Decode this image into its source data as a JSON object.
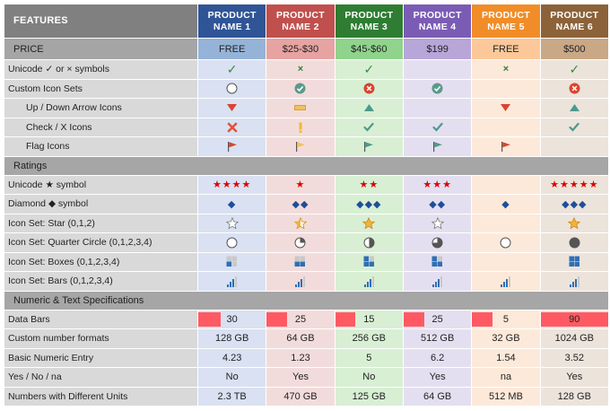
{
  "header": {
    "features": "FEATURES",
    "products": [
      {
        "line1": "PRODUCT",
        "line2": "NAME 1",
        "color": "#2f5597"
      },
      {
        "line1": "PRODUCT",
        "line2": "NAME 2",
        "color": "#c0504d"
      },
      {
        "line1": "PRODUCT",
        "line2": "NAME 3",
        "color": "#2e7d32"
      },
      {
        "line1": "PRODUCT",
        "line2": "NAME 4",
        "color": "#7b5cb5"
      },
      {
        "line1": "PRODUCT",
        "line2": "NAME 5",
        "color": "#f08d28"
      },
      {
        "line1": "PRODUCT",
        "line2": "NAME 6",
        "color": "#8c6239"
      }
    ]
  },
  "price": {
    "label": "PRICE",
    "values": [
      "FREE",
      "$25-$30",
      "$45-$60",
      "$199",
      "FREE",
      "$500"
    ]
  },
  "sections": {
    "ratings": "Ratings",
    "numeric": "Numeric & Text Specifications"
  },
  "labels": {
    "unicode_symbols": "Unicode ✓ or × symbols",
    "custom_icon_sets": "Custom Icon Sets",
    "updown": "Up / Down Arrow Icons",
    "checkx": "Check / X Icons",
    "flags": "Flag Icons",
    "unicode_star": "Unicode ★ symbol",
    "diamond": "Diamond ◆ symbol",
    "iconset_star": "Icon Set: Star (0,1,2)",
    "iconset_quarter": "Icon Set: Quarter Circle (0,1,2,3,4)",
    "iconset_boxes": "Icon Set: Boxes (0,1,2,3,4)",
    "iconset_bars": "Icon Set: Bars (0,1,2,3,4)",
    "data_bars": "Data Bars",
    "custom_number": "Custom number formats",
    "basic_numeric": "Basic Numeric Entry",
    "yes_no": "Yes / No / na",
    "units": "Numbers with Different Units"
  },
  "symbols": {
    "check": "✓",
    "cross": "×",
    "star": "★",
    "diamond": "◆"
  },
  "rows": {
    "unicode_symbols": [
      "check",
      "cross",
      "check",
      "",
      "cross",
      "check"
    ],
    "custom_icon_sets": [
      "circle-empty-icon",
      "check-circle-icon",
      "x-circle-icon",
      "check-circle-icon",
      "",
      "x-circle-icon"
    ],
    "updown": [
      "arrow-down-icon",
      "dash-icon",
      "arrow-up-icon",
      "",
      "arrow-down-icon",
      "arrow-up-icon"
    ],
    "checkx": [
      "x-icon",
      "exclamation-icon",
      "check-icon",
      "check-icon",
      "",
      "check-icon"
    ],
    "flags": [
      "flag-red-icon",
      "flag-yellow-icon",
      "flag-green-icon",
      "flag-green-icon",
      "flag-red-icon",
      ""
    ],
    "unicode_star": [
      4,
      1,
      2,
      3,
      0,
      5
    ],
    "diamond": [
      1,
      2,
      3,
      2,
      1,
      3
    ],
    "iconset_star": [
      0,
      1,
      2,
      0,
      null,
      2
    ],
    "iconset_quarter": [
      0,
      1,
      2,
      3,
      0,
      4
    ],
    "iconset_boxes": [
      1,
      2,
      3,
      3,
      null,
      4
    ],
    "iconset_bars": [
      3,
      3,
      3,
      3,
      3,
      3
    ],
    "data_bars": [
      30,
      25,
      15,
      25,
      5,
      90
    ],
    "custom_number": [
      "128 GB",
      "64 GB",
      "256 GB",
      "512 GB",
      "32 GB",
      "1024 GB"
    ],
    "basic_numeric": [
      "4.23",
      "1.23",
      "5",
      "6.2",
      "1.54",
      "3.52"
    ],
    "yes_no": [
      "No",
      "Yes",
      "No",
      "Yes",
      "na",
      "Yes"
    ],
    "units": [
      "2.3 TB",
      "470 GB",
      "125 GB",
      "64 GB",
      "512 MB",
      "128 GB"
    ]
  },
  "data_bar_max": 90,
  "colors": {
    "data_bar": "#ff5a63",
    "star_red": "#e00000",
    "diamond_blue": "#1f4e9a",
    "check_green": "#3a8a3a"
  }
}
